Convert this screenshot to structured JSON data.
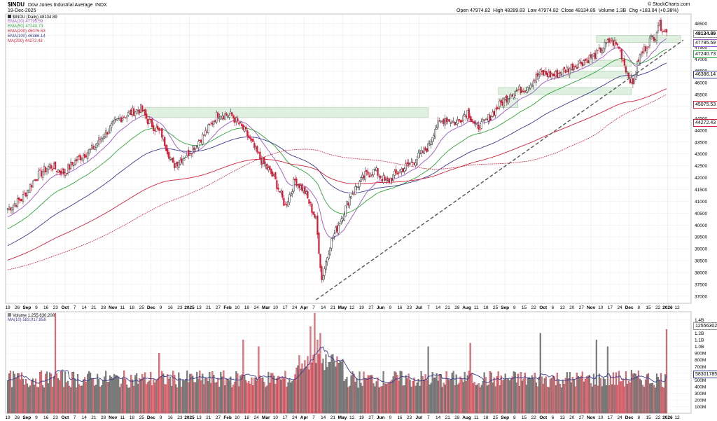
{
  "header": {
    "symbol_title": "$INDU",
    "name": "Dow Jones Industrial Average",
    "exchange": "INDX",
    "date": "19-Dec-2025",
    "copyright": "© StockCharts.com",
    "ohlc": {
      "open_label": "Open",
      "open": "47974.82",
      "high_label": "High",
      "high": "48289.83",
      "low_label": "Low",
      "low": "47974.82",
      "close_label": "Close",
      "close": "48134.89",
      "volume_label": "Volume",
      "volume": "1.3B",
      "chg_label": "Chg",
      "chg": "+183.04 (+0.38%)"
    }
  },
  "legend": {
    "price": "$INDU (Daily) 48134.89",
    "ema20": "EMA(20) 47795.59",
    "ema50": "EMA(50) 47240.73",
    "ema200": "EMA(200) 45075.53",
    "ema100": "EMA(100) 46386.14",
    "ma200": "MA(200) 44272.43",
    "volume": "Volume 1,255,630,208",
    "vol_ma": "MA(10) 583,017,856"
  },
  "axis_tags": {
    "close": "48134.89",
    "ema20": "47795.59",
    "ema50": "47240.73",
    "ema100": "46386.14",
    "ema200": "45075.53",
    "ma200": "44272.43",
    "vol": "1255630208",
    "vol_ma": "583017856"
  },
  "colors": {
    "up_candle": "#2f2f2f",
    "down_candle": "#d3203a",
    "ema20": "#9a57c8",
    "ema50": "#2fa53c",
    "ema200": "#d3203a",
    "ema100": "#3a3a8c",
    "ma200": "#d3203a",
    "support_zone": "#dbeedb",
    "trendline": "#555555",
    "vol_up": "#808080",
    "vol_down": "#e07a80"
  },
  "chart_data": {
    "type": "candlestick",
    "title": "$INDU (Daily) 48134.89",
    "ylim": [
      36700,
      48900
    ],
    "y_ticks": [
      37000,
      37500,
      38000,
      38500,
      39000,
      39500,
      40000,
      40500,
      41000,
      41500,
      42000,
      42500,
      43000,
      43500,
      44000,
      44500,
      45000,
      45500,
      46000,
      46500,
      47000,
      47500,
      48000,
      48500
    ],
    "y_tick_labels": [
      "37000",
      "37500",
      "38000",
      "38500",
      "39000",
      "39500",
      "40000",
      "40500",
      "41000",
      "41500",
      "42000",
      "42500",
      "43000",
      "43500",
      "44000",
      "44500",
      "45000",
      "45500",
      "46000",
      "46500",
      "47000",
      "47500",
      "48000",
      "48500"
    ],
    "x_tick_labels": [
      "19",
      "26",
      "Sep",
      "9",
      "16",
      "23",
      "Oct",
      "7",
      "14",
      "21",
      "28",
      "Nov",
      "11",
      "18",
      "25",
      "Dec",
      "9",
      "16",
      "23",
      "2025",
      "13",
      "21",
      "27",
      "Feb",
      "10",
      "18",
      "24",
      "Mar",
      "10",
      "17",
      "24",
      "Apr",
      "7",
      "14",
      "21",
      "May",
      "12",
      "19",
      "27",
      "Jun",
      "9",
      "16",
      "23",
      "Jul",
      "7",
      "14",
      "21",
      "28",
      "Aug",
      "11",
      "18",
      "25",
      "Sep",
      "8",
      "15",
      "22",
      "Oct",
      "6",
      "13",
      "20",
      "27",
      "Nov",
      "10",
      "17",
      "24",
      "Dec",
      "8",
      "15",
      "22",
      "2026",
      "12"
    ],
    "bold_x_labels": [
      "Sep",
      "Oct",
      "Nov",
      "Dec",
      "2025",
      "Feb",
      "Mar",
      "Apr",
      "May",
      "Jun",
      "Jul",
      "Aug",
      "Sep",
      "Oct",
      "Nov",
      "Dec",
      "2026"
    ],
    "price_anchors": [
      [
        0,
        40700
      ],
      [
        10,
        41100
      ],
      [
        20,
        42000
      ],
      [
        30,
        42500
      ],
      [
        40,
        42200
      ],
      [
        50,
        42800
      ],
      [
        60,
        43200
      ],
      [
        70,
        43900
      ],
      [
        80,
        44500
      ],
      [
        90,
        44800
      ],
      [
        95,
        44900
      ],
      [
        100,
        44400
      ],
      [
        110,
        43800
      ],
      [
        118,
        42500
      ],
      [
        128,
        43000
      ],
      [
        140,
        43800
      ],
      [
        150,
        44700
      ],
      [
        160,
        44600
      ],
      [
        170,
        43900
      ],
      [
        180,
        42800
      ],
      [
        190,
        42000
      ],
      [
        198,
        40800
      ],
      [
        205,
        41900
      ],
      [
        212,
        41400
      ],
      [
        220,
        40200
      ],
      [
        224,
        37700
      ],
      [
        230,
        39200
      ],
      [
        238,
        40300
      ],
      [
        245,
        41300
      ],
      [
        255,
        42100
      ],
      [
        262,
        42300
      ],
      [
        270,
        41800
      ],
      [
        280,
        42300
      ],
      [
        290,
        42700
      ],
      [
        300,
        43300
      ],
      [
        305,
        44100
      ],
      [
        312,
        44500
      ],
      [
        320,
        44300
      ],
      [
        328,
        44800
      ],
      [
        334,
        44100
      ],
      [
        340,
        44300
      ],
      [
        350,
        45000
      ],
      [
        360,
        45600
      ],
      [
        370,
        45800
      ],
      [
        380,
        46400
      ],
      [
        390,
        46300
      ],
      [
        400,
        46600
      ],
      [
        410,
        46900
      ],
      [
        420,
        47200
      ],
      [
        430,
        47800
      ],
      [
        436,
        47500
      ],
      [
        441,
        46600
      ],
      [
        446,
        45900
      ],
      [
        450,
        47000
      ],
      [
        458,
        47800
      ],
      [
        462,
        48000
      ],
      [
        464,
        48500
      ],
      [
        470,
        48134
      ]
    ],
    "volume_ylim": [
      0,
      1500000000
    ],
    "volume_ticks": [
      100000000,
      200000000,
      300000000,
      400000000,
      500000000,
      600000000,
      700000000,
      800000000,
      900000000,
      1000000000,
      1100000000,
      1200000000,
      1400000000
    ],
    "volume_tick_labels": [
      "100M",
      "200M",
      "300M",
      "400M",
      "500M",
      "600M",
      "700M",
      "800M",
      "900M",
      "1.0B",
      "1.1B",
      "1.2B",
      "1.4B"
    ],
    "volume_spikes": [
      [
        34,
        1500000000
      ],
      [
        108,
        900000000
      ],
      [
        168,
        1100000000
      ],
      [
        179,
        1000000000
      ],
      [
        216,
        1300000000
      ],
      [
        219,
        1500000000
      ],
      [
        221,
        1100000000
      ],
      [
        223,
        1200000000
      ],
      [
        300,
        1000000000
      ],
      [
        330,
        1050000000
      ],
      [
        380,
        1200000000
      ],
      [
        420,
        1100000000
      ],
      [
        428,
        1000000000
      ],
      [
        445,
        650000000
      ],
      [
        470,
        1255630208
      ]
    ],
    "support_zones": [
      {
        "label": "",
        "x0": 95,
        "x1": 300,
        "y0": 44550,
        "y1": 44950
      },
      {
        "label": "",
        "x0": 350,
        "x1": 364,
        "y0": 44950,
        "y1": 45350
      },
      {
        "label": "",
        "x0": 350,
        "x1": 445,
        "y0": 45500,
        "y1": 45800
      },
      {
        "label": "",
        "x0": 390,
        "x1": 445,
        "y0": 46200,
        "y1": 46500
      },
      {
        "label": "",
        "x0": 410,
        "x1": 445,
        "y0": 46700,
        "y1": 46950
      },
      {
        "label": "",
        "x0": 420,
        "x1": 480,
        "y0": 47700,
        "y1": 48000
      }
    ],
    "trendline": [
      [
        220,
        36850
      ],
      [
        482,
        47800
      ]
    ]
  }
}
